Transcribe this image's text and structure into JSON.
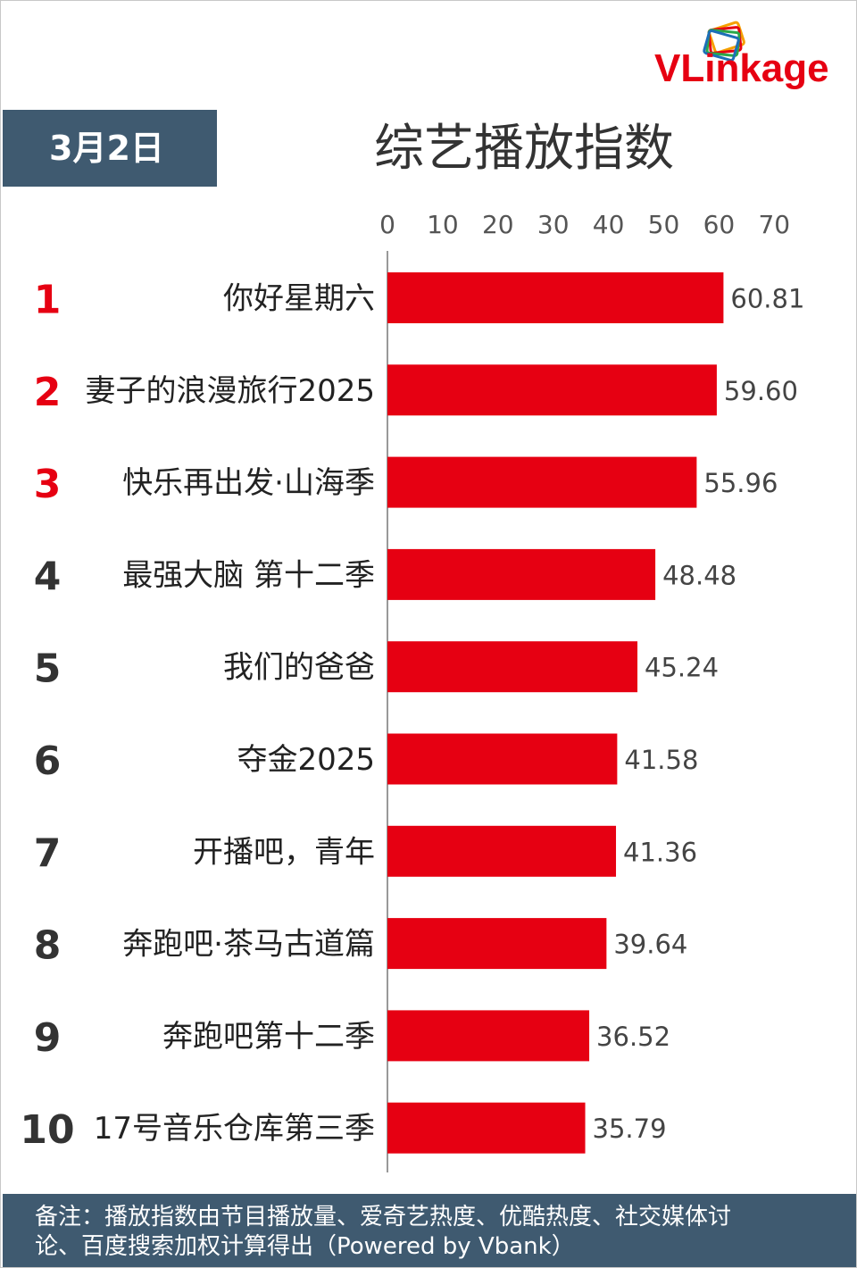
{
  "header": {
    "date": "3月2日",
    "title": "综艺播放指数",
    "logo_text": "VLinkage"
  },
  "chart_data": {
    "type": "bar",
    "orientation": "horizontal",
    "title": "综艺播放指数",
    "ranks": [
      "1",
      "2",
      "3",
      "4",
      "5",
      "6",
      "7",
      "8",
      "9",
      "10"
    ],
    "categories": [
      "你好星期六",
      "妻子的浪漫旅行2025",
      "快乐再出发·山海季",
      "最强大脑 第十二季",
      "我们的爸爸",
      "夺金2025",
      "开播吧，青年",
      "奔跑吧·茶马古道篇",
      "奔跑吧第十二季",
      "17号音乐仓库第三季"
    ],
    "values": [
      60.81,
      59.6,
      55.96,
      48.48,
      45.24,
      41.58,
      41.36,
      39.64,
      36.52,
      35.79
    ],
    "value_labels": [
      "60.81",
      "59.60",
      "55.96",
      "48.48",
      "45.24",
      "41.58",
      "41.36",
      "39.64",
      "36.52",
      "35.79"
    ],
    "xlim": [
      0,
      70
    ],
    "xticks": [
      "0",
      "10",
      "20",
      "30",
      "40",
      "50",
      "60",
      "70"
    ],
    "xaxis_position": "top",
    "grid": false,
    "colors": {
      "bar": "#e60012",
      "rank_top3": "#e60012",
      "rank_other": "#333333",
      "header_bg": "#3f5a70"
    }
  },
  "footer": {
    "note_line1": "备注：播放指数由节目播放量、爱奇艺热度、优酷热度、社交媒体讨",
    "note_line2": "论、百度搜索加权计算得出（Powered by Vbank）"
  }
}
